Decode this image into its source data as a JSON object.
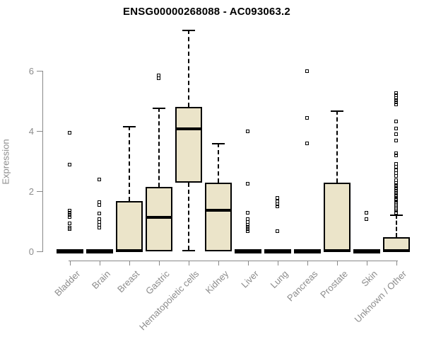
{
  "chart_data": {
    "type": "boxplot",
    "title": "ENSG00000268088 - AC093063.2",
    "xlabel": "",
    "ylabel": "Expression",
    "yticks": [
      0,
      2,
      4,
      6
    ],
    "ylim": [
      0,
      7.5
    ],
    "grid": false,
    "legend": "none",
    "categories": [
      "Bladder",
      "Brain",
      "Breast",
      "Gastric",
      "Hematopoietic cells",
      "Kidney",
      "Liver",
      "Lung",
      "Pancreas",
      "Prostate",
      "Skin",
      "Unknown / Other"
    ],
    "boxes": [
      {
        "category": "Bladder",
        "q1": 0,
        "median": 0,
        "q3": 0,
        "whisker_low": 0,
        "whisker_high": 0,
        "outliers": [
          3.93,
          2.87,
          1.34,
          1.27,
          1.2,
          1.13,
          0.92,
          0.78,
          0.72
        ]
      },
      {
        "category": "Brain",
        "q1": 0,
        "median": 0,
        "q3": 0,
        "whisker_low": 0,
        "whisker_high": 0,
        "outliers": [
          2.38,
          1.62,
          1.52,
          1.25,
          1.06,
          0.97,
          0.88,
          0.78
        ]
      },
      {
        "category": "Breast",
        "q1": 0,
        "median": 0.03,
        "q3": 1.66,
        "whisker_low": 0,
        "whisker_high": 4.16,
        "outliers": []
      },
      {
        "category": "Gastric",
        "q1": 0,
        "median": 1.13,
        "q3": 2.15,
        "whisker_low": 0,
        "whisker_high": 4.78,
        "outliers": [
          5.83,
          5.74
        ]
      },
      {
        "category": "Hematopoietic cells",
        "q1": 2.28,
        "median": 4.07,
        "q3": 4.8,
        "whisker_low": 0.05,
        "whisker_high": 7.36,
        "outliers": []
      },
      {
        "category": "Kidney",
        "q1": 0,
        "median": 1.37,
        "q3": 2.28,
        "whisker_low": 0,
        "whisker_high": 3.6,
        "outliers": []
      },
      {
        "category": "Liver",
        "q1": 0,
        "median": 0,
        "q3": 0,
        "whisker_low": 0,
        "whisker_high": 0,
        "outliers": [
          3.98,
          2.24,
          1.27,
          1.06,
          0.97,
          0.88,
          0.8,
          0.72,
          0.66
        ]
      },
      {
        "category": "Lung",
        "q1": 0,
        "median": 0,
        "q3": 0,
        "whisker_low": 0,
        "whisker_high": 0,
        "outliers": [
          1.76,
          1.65,
          1.55,
          1.48,
          0.66
        ]
      },
      {
        "category": "Pancreas",
        "q1": 0,
        "median": 0,
        "q3": 0,
        "whisker_low": 0,
        "whisker_high": 0,
        "outliers": [
          5.98,
          4.42,
          3.58
        ]
      },
      {
        "category": "Prostate",
        "q1": 0,
        "median": 0.03,
        "q3": 2.28,
        "whisker_low": 0,
        "whisker_high": 4.68,
        "outliers": []
      },
      {
        "category": "Skin",
        "q1": 0,
        "median": 0,
        "q3": 0,
        "whisker_low": 0,
        "whisker_high": 0,
        "outliers": [
          1.27,
          1.06
        ]
      },
      {
        "category": "Unknown / Other",
        "q1": 0,
        "median": 0.02,
        "q3": 0.47,
        "whisker_low": 0,
        "whisker_high": 1.22,
        "outliers": [
          5.25,
          5.17,
          5.09,
          5.01,
          4.93,
          4.86,
          4.3,
          4.07,
          3.88,
          3.67,
          3.25,
          3.18,
          2.9,
          2.79,
          2.68,
          2.58,
          2.49,
          2.35,
          2.27,
          2.2,
          2.13,
          2.06,
          1.99,
          1.93,
          1.87,
          1.81,
          1.75,
          1.69,
          1.63,
          1.58,
          1.53,
          1.48,
          1.43,
          1.38,
          1.33,
          1.28
        ]
      }
    ],
    "colors": {
      "box_fill": "#EBE4C9",
      "box_border": "#000000",
      "median": "#000000",
      "axis": "#888888",
      "tick_label": "#8c8c8c",
      "title": "#000000",
      "background": "#ffffff"
    }
  }
}
